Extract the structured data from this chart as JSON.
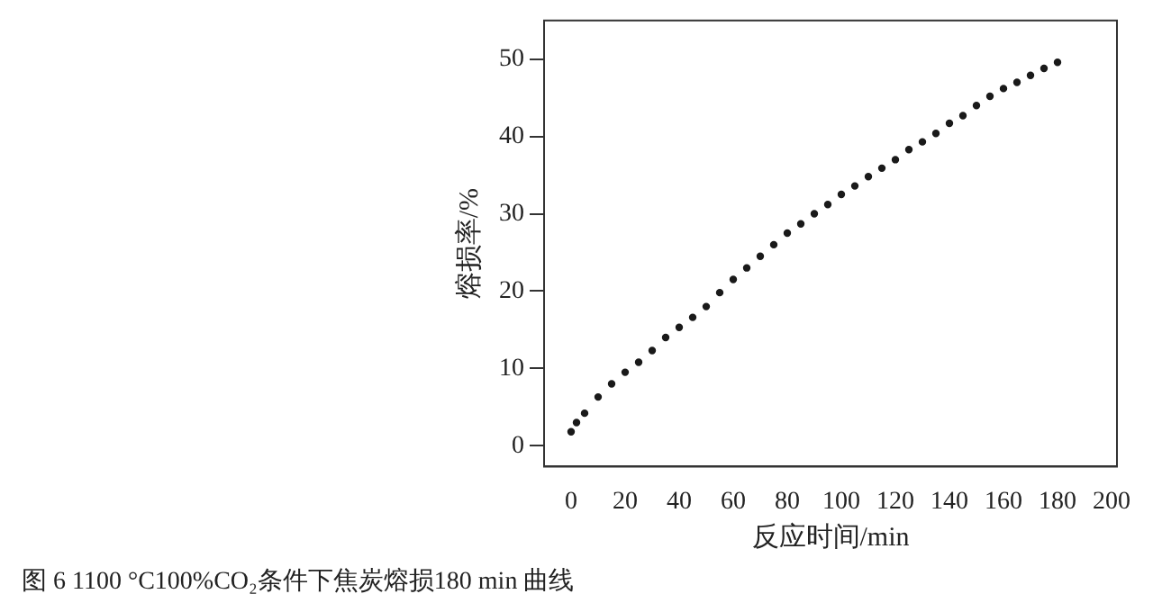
{
  "chart_data": {
    "type": "scatter",
    "xlabel": "反应时间/min",
    "ylabel": "熔损率/%",
    "x": [
      0,
      2,
      5,
      10,
      15,
      20,
      25,
      30,
      35,
      40,
      45,
      50,
      55,
      60,
      65,
      70,
      75,
      80,
      85,
      90,
      95,
      100,
      105,
      110,
      115,
      120,
      125,
      130,
      135,
      140,
      145,
      150,
      155,
      160,
      165,
      170,
      175,
      180
    ],
    "series": [
      {
        "color": "#1a1a1a",
        "values": [
          1.8,
          3,
          4.2,
          6.3,
          8,
          9.5,
          10.8,
          12.3,
          14,
          15.3,
          16.6,
          18,
          19.8,
          21.5,
          23,
          24.5,
          26,
          27.5,
          28.7,
          30,
          31.2,
          32.5,
          33.6,
          34.8,
          35.9,
          37,
          38.3,
          39.3,
          40.4,
          41.7,
          42.7,
          44,
          45.2,
          46.2,
          47,
          47.9,
          48.8,
          49.6
        ]
      }
    ],
    "xlim": [
      -10,
      202
    ],
    "xticks": [
      0,
      20,
      40,
      60,
      80,
      100,
      120,
      140,
      160,
      180,
      200
    ],
    "ylim": [
      -2.7,
      55
    ],
    "yticks": [
      0,
      10,
      20,
      30,
      40,
      50
    ],
    "grid": false,
    "legend": false,
    "marker": "circle",
    "annotations": [
      "图 6 1100 °C100%CO₂条件下焦炭熔损180 min 曲线"
    ]
  }
}
